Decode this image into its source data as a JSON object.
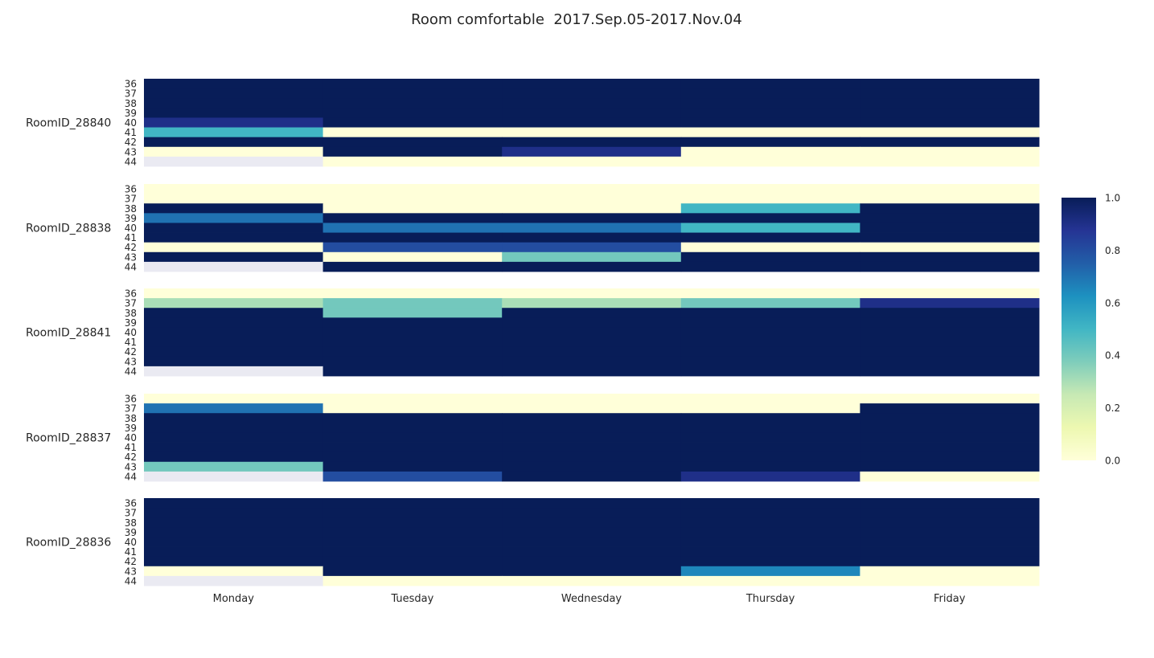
{
  "chart_data": {
    "type": "heatmap",
    "title": "Room comfortable  2017.Sep.05-2017.Nov.04",
    "xlabel": "",
    "ylabel": "",
    "x": [
      "Monday",
      "Tuesday",
      "Wednesday",
      "Thursday",
      "Friday"
    ],
    "y": [
      "36",
      "37",
      "38",
      "39",
      "40",
      "41",
      "42",
      "43",
      "44"
    ],
    "colorscale": "YlGnBu",
    "missing_color": "#eaeaf2",
    "vmin": 0.0,
    "vmax": 1.0,
    "colorbar_ticks": [
      "0.0",
      "0.2",
      "0.4",
      "0.6",
      "0.8",
      "1.0"
    ],
    "panels": [
      {
        "name": "RoomID_28840",
        "values": [
          [
            1,
            1,
            1,
            1,
            1
          ],
          [
            1,
            1,
            1,
            1,
            1
          ],
          [
            1,
            1,
            1,
            1,
            1
          ],
          [
            1,
            1,
            1,
            1,
            1
          ],
          [
            0.9,
            1,
            1,
            1,
            1
          ],
          [
            0.5,
            0,
            0,
            0,
            0
          ],
          [
            1,
            1,
            1,
            1,
            1
          ],
          [
            0,
            1,
            0.9,
            0,
            0
          ],
          [
            null,
            0,
            0,
            0,
            0
          ]
        ]
      },
      {
        "name": "RoomID_28838",
        "values": [
          [
            0,
            0,
            0,
            0,
            0
          ],
          [
            0,
            0,
            0,
            0,
            0
          ],
          [
            1,
            0,
            0,
            0.5,
            1
          ],
          [
            0.7,
            1,
            1,
            1,
            1
          ],
          [
            1,
            0.7,
            0.7,
            0.5,
            1
          ],
          [
            1,
            1,
            1,
            1,
            1
          ],
          [
            0,
            0.8,
            0.8,
            0,
            0
          ],
          [
            1,
            0,
            0.4,
            1,
            1
          ],
          [
            null,
            1,
            1,
            1,
            1
          ]
        ]
      },
      {
        "name": "RoomID_28841",
        "values": [
          [
            0,
            0,
            0,
            0,
            0
          ],
          [
            0.3,
            0.4,
            0.3,
            0.4,
            0.9
          ],
          [
            1,
            0.4,
            1,
            1,
            1
          ],
          [
            1,
            1,
            1,
            1,
            1
          ],
          [
            1,
            1,
            1,
            1,
            1
          ],
          [
            1,
            1,
            1,
            1,
            1
          ],
          [
            1,
            1,
            1,
            1,
            1
          ],
          [
            1,
            1,
            1,
            1,
            1
          ],
          [
            null,
            1,
            1,
            1,
            1
          ]
        ]
      },
      {
        "name": "RoomID_28837",
        "values": [
          [
            0,
            0,
            0,
            0,
            0
          ],
          [
            0.7,
            0,
            0,
            0,
            1
          ],
          [
            1,
            1,
            1,
            1,
            1
          ],
          [
            1,
            1,
            1,
            1,
            1
          ],
          [
            1,
            1,
            1,
            1,
            1
          ],
          [
            1,
            1,
            1,
            1,
            1
          ],
          [
            1,
            1,
            1,
            1,
            1
          ],
          [
            0.4,
            1,
            1,
            1,
            1
          ],
          [
            null,
            0.8,
            1,
            0.9,
            0
          ]
        ]
      },
      {
        "name": "RoomID_28836",
        "values": [
          [
            1,
            1,
            1,
            1,
            1
          ],
          [
            1,
            1,
            1,
            1,
            1
          ],
          [
            1,
            1,
            1,
            1,
            1
          ],
          [
            1,
            1,
            1,
            1,
            1
          ],
          [
            1,
            1,
            1,
            1,
            1
          ],
          [
            1,
            1,
            1,
            1,
            1
          ],
          [
            1,
            1,
            1,
            1,
            1
          ],
          [
            0,
            1,
            1,
            0.65,
            0
          ],
          [
            null,
            0,
            0,
            0,
            0
          ]
        ]
      }
    ]
  }
}
